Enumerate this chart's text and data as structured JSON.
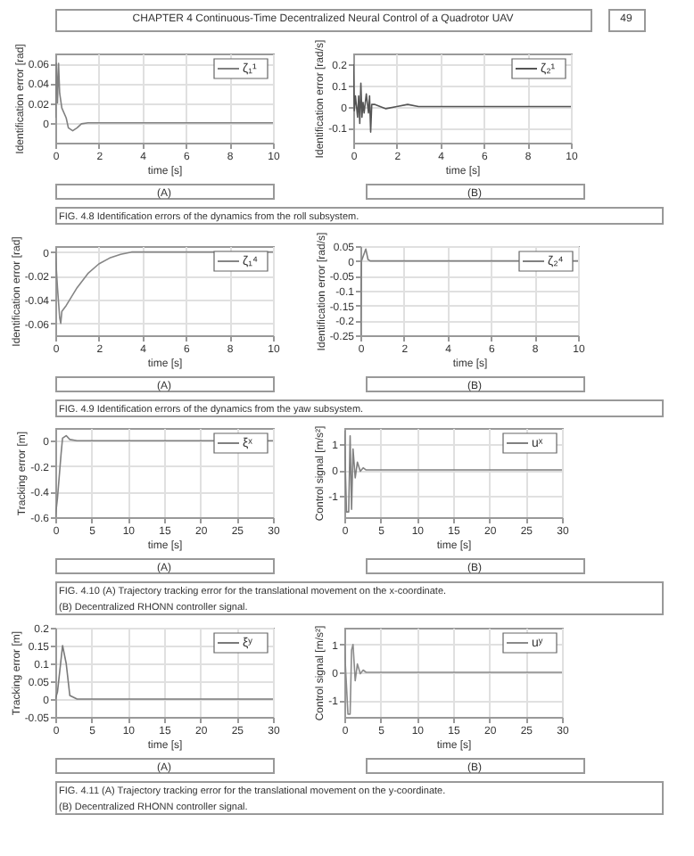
{
  "chart_data": [
    {
      "type": "line",
      "xlabel": "time [s]",
      "ylabel": "Identification error [rad]",
      "xlim": [
        0,
        10
      ],
      "xticks": [
        0,
        2,
        4,
        6,
        8,
        10
      ],
      "ylim": [
        -0.02,
        0.07
      ],
      "yticks": [
        0,
        0.02,
        0.04,
        0.06
      ],
      "grid": true,
      "legend": "top right",
      "marker": "none",
      "annotations": [
        "CHAPTER 4",
        "Continuous-Time Decentralized Neural Control of a Quadrotor UAV",
        "49",
        "(A)"
      ],
      "series": [
        {
          "name": "ζ₁¹",
          "color": "#808080",
          "x": [
            0,
            0.05,
            0.1,
            0.15,
            0.2,
            0.3,
            0.5,
            0.6,
            0.8,
            1.0,
            1.2,
            1.5,
            10
          ],
          "values": [
            0.005,
            0.06,
            0.02,
            0.06,
            0.03,
            0.015,
            0.005,
            -0.005,
            -0.008,
            -0.005,
            -0.001,
            0,
            0
          ]
        }
      ]
    },
    {
      "type": "line",
      "xlabel": "time [s]",
      "ylabel": "Identification error [rad/s]",
      "xlim": [
        0,
        10
      ],
      "xticks": [
        0,
        2,
        4,
        6,
        8,
        10
      ],
      "ylim": [
        -0.17,
        0.25
      ],
      "yticks": [
        -0.1,
        0,
        0.1,
        0.2
      ],
      "grid": true,
      "legend": "top right",
      "marker": "none",
      "annotations": [
        "(B)",
        "FIG. 4.8 Identification errors of the dynamics from the roll subsystem."
      ],
      "series": [
        {
          "name": "ζ₂¹",
          "color": "#555555",
          "x": [
            0,
            0.05,
            0.1,
            0.15,
            0.2,
            0.25,
            0.3,
            0.35,
            0.4,
            0.45,
            0.5,
            0.6,
            0.7,
            0.75,
            0.8,
            0.85,
            1,
            1.5,
            2,
            2.5,
            3,
            10
          ],
          "values": [
            0.2,
            -0.02,
            0.05,
            0,
            -0.05,
            0.05,
            -0.08,
            0.11,
            -0.05,
            0.02,
            -0.03,
            0.06,
            -0.03,
            0.05,
            -0.12,
            0.01,
            0.01,
            -0.01,
            0,
            0.01,
            0,
            0
          ]
        }
      ]
    },
    {
      "type": "line",
      "xlabel": "time [s]",
      "ylabel": "Identification error [rad]",
      "xlim": [
        0,
        10
      ],
      "xticks": [
        0,
        2,
        4,
        6,
        8,
        10
      ],
      "ylim": [
        -0.07,
        0.005
      ],
      "yticks": [
        -0.06,
        -0.04,
        -0.02,
        0
      ],
      "grid": true,
      "legend": "top right",
      "marker": "none",
      "annotations": [
        "(A)"
      ],
      "series": [
        {
          "name": "ζ₁⁴",
          "color": "#858585",
          "x": [
            0,
            0.05,
            0.1,
            0.2,
            0.25,
            0.3,
            0.5,
            1,
            1.5,
            2,
            2.5,
            3,
            3.5,
            10
          ],
          "values": [
            0,
            -0.015,
            -0.03,
            -0.055,
            -0.06,
            -0.05,
            -0.045,
            -0.03,
            -0.018,
            -0.01,
            -0.005,
            -0.002,
            0,
            0
          ]
        }
      ]
    },
    {
      "type": "line",
      "xlabel": "time [s]",
      "ylabel": "Identification error [rad/s]",
      "xlim": [
        0,
        10
      ],
      "xticks": [
        0,
        2,
        4,
        6,
        8,
        10
      ],
      "ylim": [
        -0.25,
        0.05
      ],
      "yticks": [
        -0.25,
        -0.2,
        -0.15,
        -0.1,
        -0.05,
        0,
        0.05
      ],
      "grid": true,
      "legend": "top right",
      "marker": "none",
      "annotations": [
        "(B)",
        "FIG. 4.9 Identification errors of the dynamics from the yaw subsystem."
      ],
      "series": [
        {
          "name": "ζ₂⁴",
          "color": "#808080",
          "x": [
            0,
            0.05,
            0.25,
            0.35,
            0.45,
            10
          ],
          "values": [
            -0.25,
            0,
            0.04,
            0.005,
            0,
            0
          ]
        }
      ]
    },
    {
      "type": "line",
      "xlabel": "time [s]",
      "ylabel": "Tracking error [m]",
      "xlim": [
        0,
        30
      ],
      "xticks": [
        0,
        5,
        10,
        15,
        20,
        25,
        30
      ],
      "ylim": [
        -0.6,
        0.1
      ],
      "yticks": [
        -0.6,
        -0.4,
        -0.2,
        0
      ],
      "grid": true,
      "legend": "top right",
      "marker": "none",
      "annotations": [
        "(A)"
      ],
      "series": [
        {
          "name": "ξˣ",
          "color": "#808080",
          "x": [
            0,
            0.3,
            0.8,
            1,
            1.5,
            2,
            3,
            30
          ],
          "values": [
            -0.6,
            -0.45,
            -0.1,
            0.02,
            0.04,
            0.01,
            0,
            0
          ]
        }
      ]
    },
    {
      "type": "line",
      "xlabel": "time [s]",
      "ylabel": "Control signal [m/s²]",
      "xlim": [
        0,
        30
      ],
      "xticks": [
        0,
        5,
        10,
        15,
        20,
        25,
        30
      ],
      "ylim": [
        -1.8,
        1.6
      ],
      "yticks": [
        -1,
        0,
        1
      ],
      "grid": true,
      "legend": "top right",
      "marker": "none",
      "annotations": [
        "(B)",
        "FIG. 4.10 (A) Trajectory tracking error for the translational movement on the x-coordinate.",
        "(B) Decentralized RHONN controller signal."
      ],
      "series": [
        {
          "name": "uˣ",
          "color": "#808080",
          "x": [
            0,
            0.3,
            0.6,
            0.8,
            1,
            1.2,
            1.5,
            1.8,
            2.2,
            2.6,
            3,
            30
          ],
          "values": [
            1.5,
            -1.6,
            -1.6,
            1.3,
            -1.5,
            0.8,
            -0.3,
            0.3,
            -0.05,
            0.08,
            0,
            0
          ]
        }
      ]
    },
    {
      "type": "line",
      "xlabel": "time [s]",
      "ylabel": "Tracking error [m]",
      "xlim": [
        0,
        30
      ],
      "xticks": [
        0,
        5,
        10,
        15,
        20,
        25,
        30
      ],
      "ylim": [
        -0.05,
        0.2
      ],
      "yticks": [
        -0.05,
        0,
        0.05,
        0.1,
        0.15,
        0.2
      ],
      "grid": true,
      "legend": "top right",
      "marker": "none",
      "annotations": [
        "(A)"
      ],
      "series": [
        {
          "name": "ξʸ",
          "color": "#7a7a7a",
          "x": [
            0,
            0.3,
            1,
            1.5,
            2,
            3,
            30
          ],
          "values": [
            0,
            0.02,
            0.15,
            0.1,
            0.01,
            0,
            0
          ]
        }
      ]
    },
    {
      "type": "line",
      "xlabel": "time [s]",
      "ylabel": "Control signal [m/s²]",
      "xlim": [
        0,
        30
      ],
      "xticks": [
        0,
        5,
        10,
        15,
        20,
        25,
        30
      ],
      "ylim": [
        -1.6,
        1.6
      ],
      "yticks": [
        -1,
        0,
        1
      ],
      "grid": true,
      "legend": "top right",
      "marker": "none",
      "annotations": [
        "(B)",
        "FIG. 4.11 (A) Trajectory tracking error for the translational movement on the y-coordinate.",
        "(B) Decentralized RHONN controller signal."
      ],
      "series": [
        {
          "name": "uʸ",
          "color": "#8a8a8a",
          "x": [
            0,
            0.5,
            0.8,
            1,
            1.2,
            1.5,
            1.8,
            2.2,
            2.6,
            3,
            30
          ],
          "values": [
            1,
            -1.5,
            -1.5,
            0.8,
            1.0,
            -0.3,
            0.3,
            -0.05,
            0.08,
            0,
            0
          ]
        }
      ]
    }
  ]
}
